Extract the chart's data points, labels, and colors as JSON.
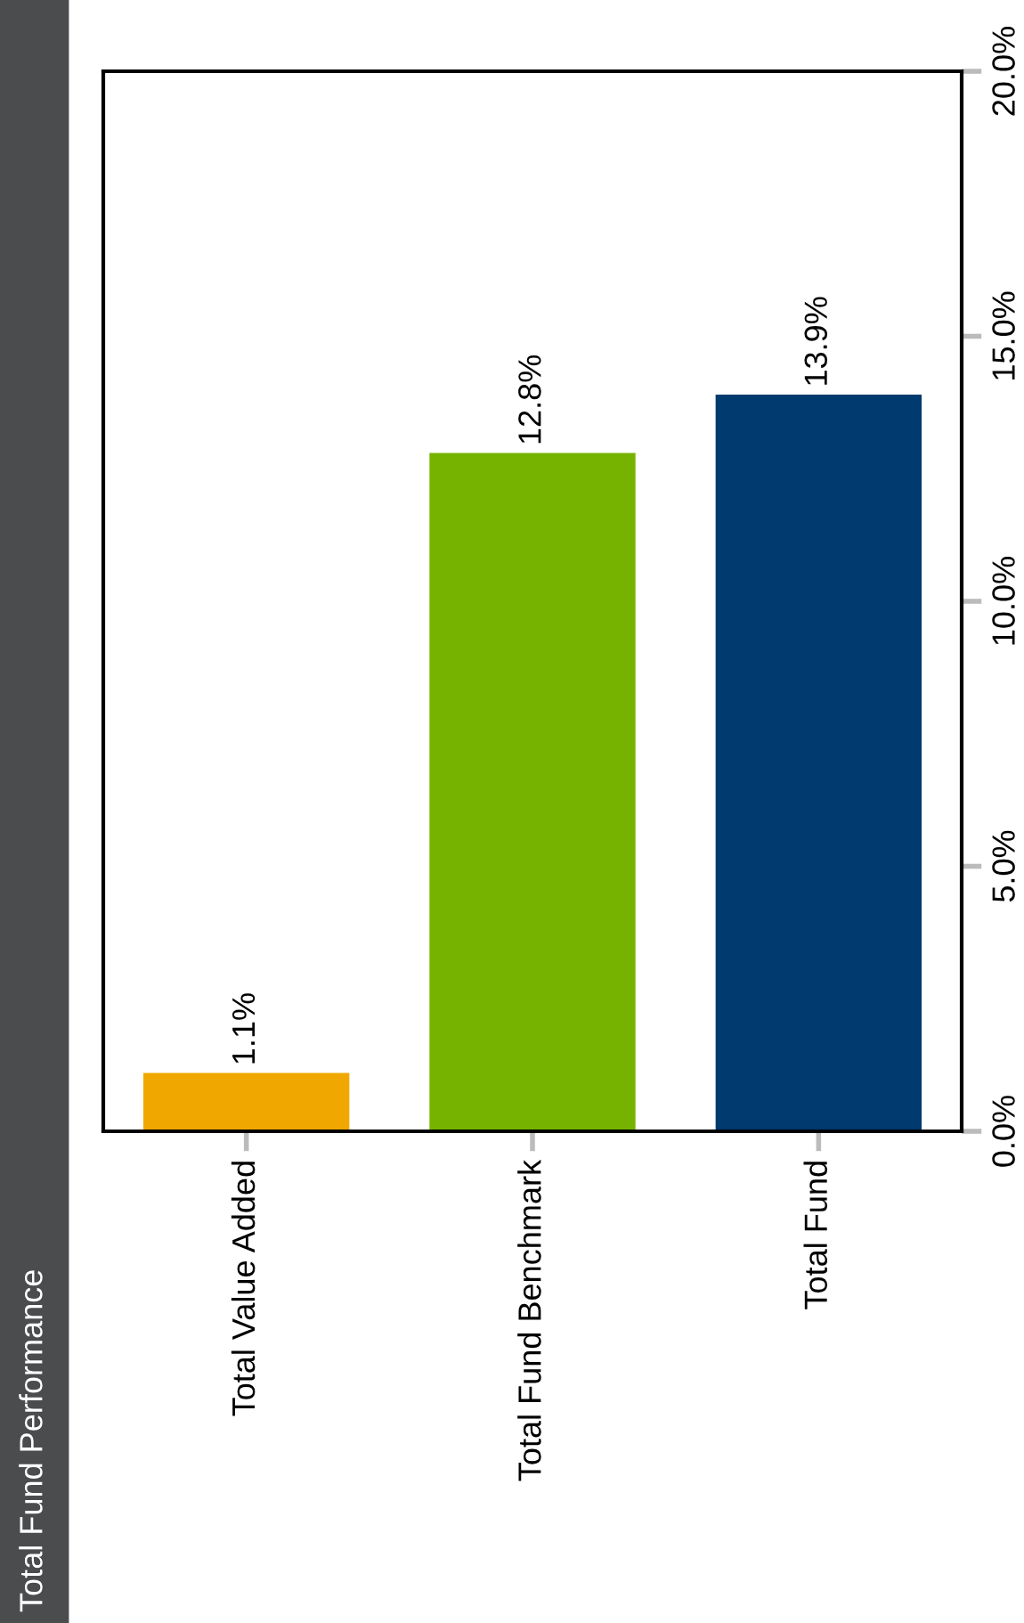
{
  "chart_data": {
    "type": "bar",
    "title": "Total Fund Performance",
    "categories": [
      "Total Value Added",
      "Total Fund Benchmark",
      "Total Fund"
    ],
    "values": [
      1.1,
      12.8,
      13.9
    ],
    "colors": [
      "#f0a800",
      "#76b300",
      "#003a6e"
    ],
    "value_labels": [
      "1.1%",
      "12.8%",
      "13.9%"
    ],
    "ylim": [
      0,
      20
    ],
    "yticks": [
      {
        "value": 0,
        "label": "0.0%"
      },
      {
        "value": 5,
        "label": "5.0%"
      },
      {
        "value": 10,
        "label": "10.0%"
      },
      {
        "value": 15,
        "label": "15.0%"
      },
      {
        "value": 20,
        "label": "20.0%"
      }
    ],
    "grid": false
  }
}
